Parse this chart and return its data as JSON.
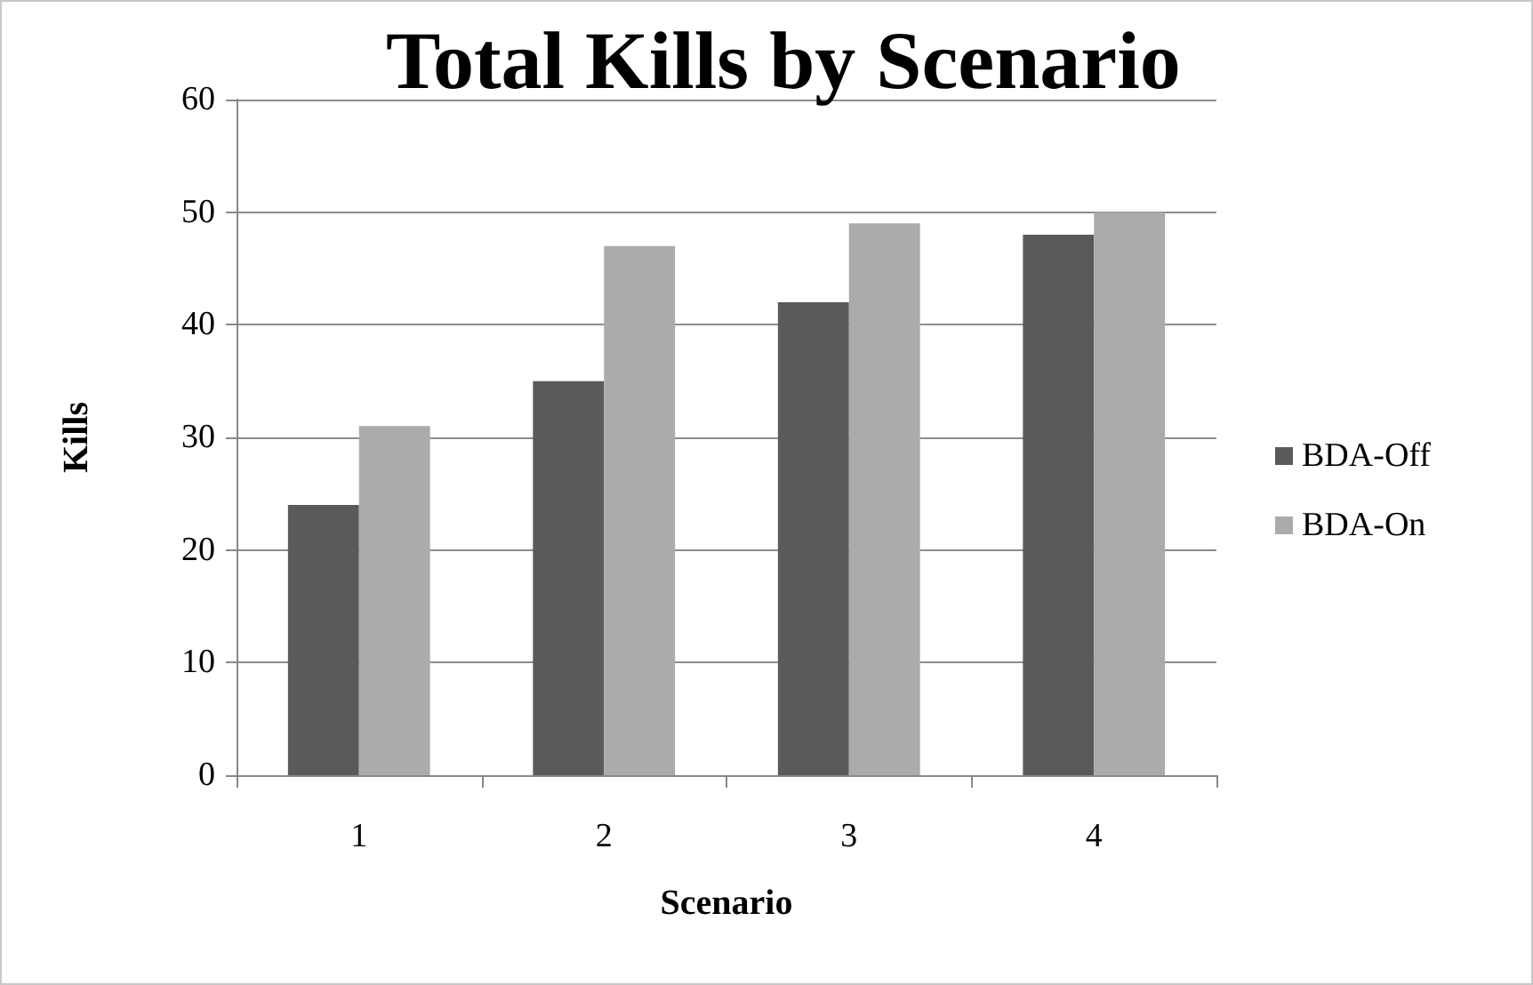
{
  "chart_data": {
    "type": "bar",
    "title": "Total Kills by Scenario",
    "xlabel": "Scenario",
    "ylabel": "Kills",
    "categories": [
      "1",
      "2",
      "3",
      "4"
    ],
    "series": [
      {
        "name": "BDA-Off",
        "color": "#5a5a5a",
        "values": [
          24,
          35,
          42,
          48
        ]
      },
      {
        "name": "BDA-On",
        "color": "#ababab",
        "values": [
          31,
          47,
          49,
          50
        ]
      }
    ],
    "ylim": [
      0,
      60
    ],
    "yticks": [
      0,
      10,
      20,
      30,
      40,
      50,
      60
    ],
    "grid": "y",
    "legend": "right"
  }
}
